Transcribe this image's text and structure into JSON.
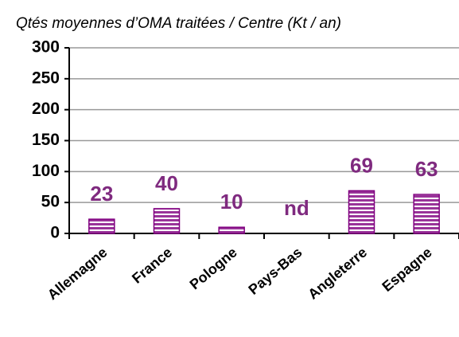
{
  "chart_data": {
    "type": "bar",
    "title": "Qtés moyennes d’OMA traitées / Centre (Kt / an)",
    "categories": [
      "Allemagne",
      "France",
      "Pologne",
      "Pays-Bas",
      "Angleterre",
      "Espagne"
    ],
    "values": [
      23,
      40,
      10,
      null,
      69,
      63
    ],
    "value_labels": [
      "23",
      "40",
      "10",
      "nd",
      "69",
      "63"
    ],
    "color": "#993399",
    "ylim": [
      0,
      300
    ],
    "yticks": [
      0,
      50,
      100,
      150,
      200,
      250,
      300
    ],
    "grid": true
  }
}
